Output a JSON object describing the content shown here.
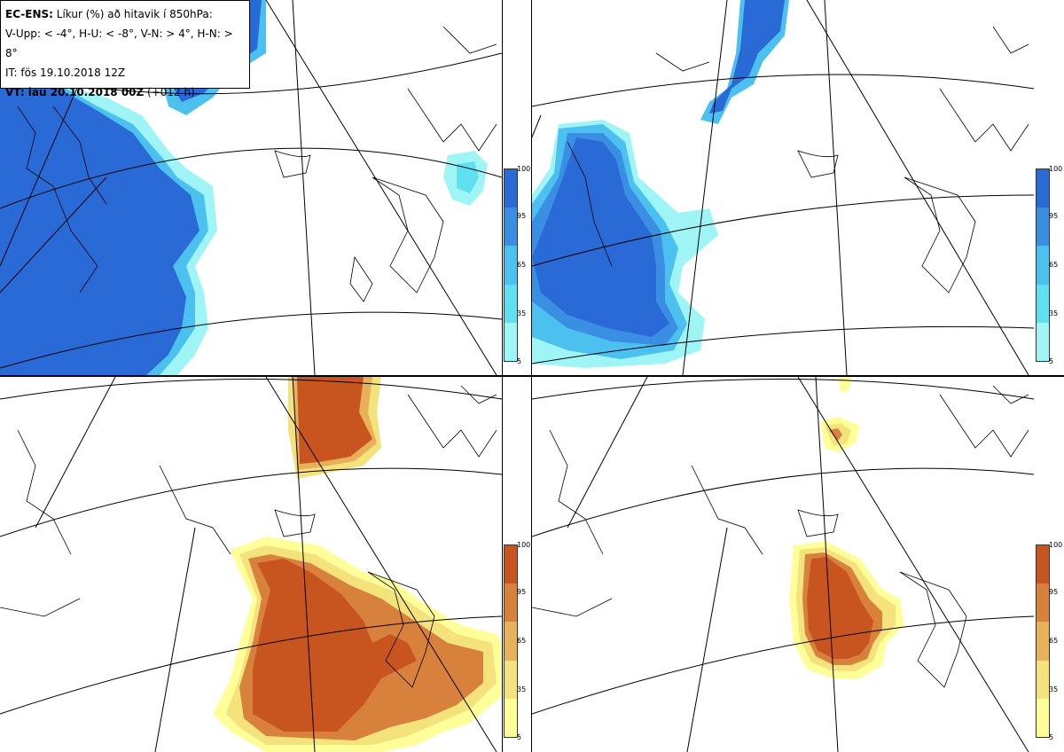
{
  "legend": {
    "line1_bold": "EC-ENS:",
    "line1_rest": " Líkur (%) að hitavik í 850hPa:",
    "line2": "V-Upp: < -4°, H-U: < -8°, V-N: > 4°, H-N: > 8°",
    "line3": "IT: fös 19.10.2018 12Z",
    "line4_bold": "VT: lau 20.10.2018 00Z",
    "line4_rest": " (+012 h)"
  },
  "colorbar_ticks": [
    "100",
    "95",
    "65",
    "35",
    "5"
  ],
  "colors": {
    "blue_scale": [
      "#9ff5f5",
      "#5fe0f0",
      "#4cc0ef",
      "#3b8fe3",
      "#2a6ad6"
    ],
    "orange_scale": [
      "#ffff9a",
      "#f4e27c",
      "#e7b159",
      "#d8813d",
      "#c8541f"
    ]
  },
  "panels": [
    {
      "name": "V-Upp",
      "colormap": "blue"
    },
    {
      "name": "H-U",
      "colormap": "blue"
    },
    {
      "name": "V-N",
      "colormap": "orange"
    },
    {
      "name": "H-N",
      "colormap": "orange"
    }
  ]
}
